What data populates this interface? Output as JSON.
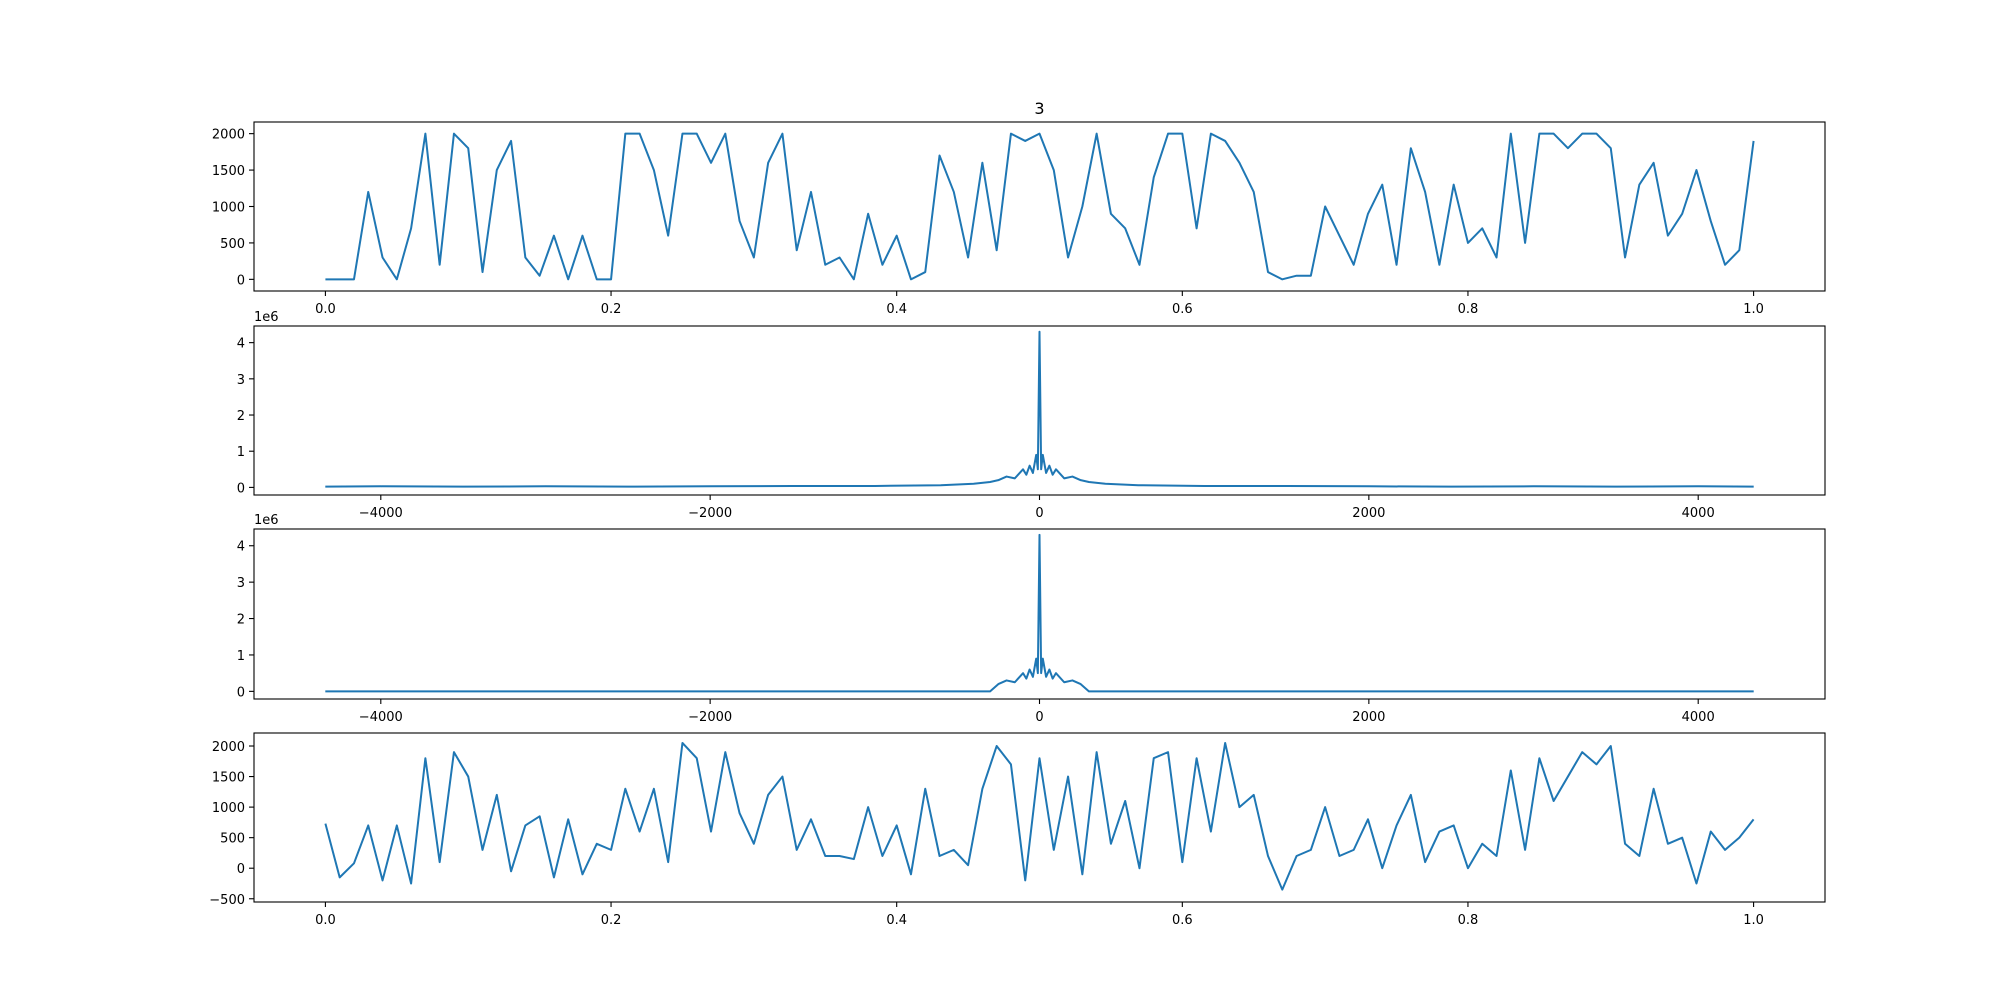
{
  "chart_data": [
    {
      "type": "line",
      "title": "3",
      "color": "#1f77b4",
      "x": [
        0,
        0.01,
        0.02,
        0.03,
        0.04,
        0.05,
        0.06,
        0.07,
        0.08,
        0.09,
        0.1,
        0.11,
        0.12,
        0.13,
        0.14,
        0.15,
        0.16,
        0.17,
        0.18,
        0.19,
        0.2,
        0.21,
        0.22,
        0.23,
        0.24,
        0.25,
        0.26,
        0.27,
        0.28,
        0.29,
        0.3,
        0.31,
        0.32,
        0.33,
        0.34,
        0.35,
        0.36,
        0.37,
        0.38,
        0.39,
        0.4,
        0.41,
        0.42,
        0.43,
        0.44,
        0.45,
        0.46,
        0.47,
        0.48,
        0.49,
        0.5,
        0.51,
        0.52,
        0.53,
        0.54,
        0.55,
        0.56,
        0.57,
        0.58,
        0.59,
        0.6,
        0.61,
        0.62,
        0.63,
        0.64,
        0.65,
        0.66,
        0.67,
        0.68,
        0.69,
        0.7,
        0.71,
        0.72,
        0.73,
        0.74,
        0.75,
        0.76,
        0.77,
        0.78,
        0.79,
        0.8,
        0.81,
        0.82,
        0.83,
        0.84,
        0.85,
        0.86,
        0.87,
        0.88,
        0.89,
        0.9,
        0.91,
        0.92,
        0.93,
        0.94,
        0.95,
        0.96,
        0.97,
        0.98,
        0.99,
        1
      ],
      "values": [
        0,
        0,
        0,
        1200,
        300,
        0,
        700,
        2000,
        200,
        2000,
        1800,
        100,
        1500,
        1900,
        300,
        50,
        600,
        0,
        600,
        0,
        0,
        2000,
        2000,
        1500,
        600,
        2000,
        2000,
        1600,
        2000,
        800,
        300,
        1600,
        2000,
        400,
        1200,
        200,
        300,
        0,
        900,
        200,
        600,
        0,
        100,
        1700,
        1200,
        300,
        1600,
        400,
        2000,
        1900,
        2000,
        1500,
        300,
        1000,
        2000,
        900,
        700,
        200,
        1400,
        2000,
        2000,
        700,
        2000,
        1900,
        1600,
        1200,
        100,
        0,
        50,
        50,
        1000,
        600,
        200,
        900,
        1300,
        200,
        1800,
        1200,
        200,
        1300,
        500,
        700,
        300,
        2000,
        500,
        2000,
        2000,
        1800,
        2000,
        2000,
        1800,
        300,
        1300,
        1600,
        600,
        900,
        1500,
        800,
        200,
        400,
        1900
      ],
      "xlim": [
        -0.05,
        1.05
      ],
      "ylim": [
        -160,
        2160
      ],
      "xticks": [
        {
          "value": 0,
          "label": "0.0"
        },
        0.2,
        0.4,
        0.6,
        0.8,
        {
          "value": 1,
          "label": "1.0"
        }
      ],
      "yticks": [
        0,
        500,
        1000,
        1500,
        2000
      ]
    },
    {
      "type": "line",
      "color": "#1f77b4",
      "y_offset_label": "1e6",
      "x": [
        -4337,
        -4000,
        -3500,
        -3000,
        -2500,
        -2000,
        -1500,
        -1000,
        -600,
        -400,
        -300,
        -250,
        -200,
        -150,
        -100,
        -80,
        -60,
        -40,
        -20,
        -10,
        0,
        10,
        20,
        40,
        60,
        80,
        100,
        150,
        200,
        250,
        300,
        400,
        600,
        1000,
        1500,
        2000,
        2500,
        3000,
        3500,
        4000,
        4337
      ],
      "values": [
        0.02,
        0.03,
        0.02,
        0.03,
        0.02,
        0.03,
        0.04,
        0.04,
        0.06,
        0.1,
        0.15,
        0.2,
        0.3,
        0.25,
        0.5,
        0.35,
        0.6,
        0.4,
        0.9,
        0.5,
        4.3,
        0.5,
        0.9,
        0.4,
        0.6,
        0.35,
        0.5,
        0.25,
        0.3,
        0.2,
        0.15,
        0.1,
        0.06,
        0.04,
        0.04,
        0.03,
        0.02,
        0.03,
        0.02,
        0.03,
        0.02
      ],
      "xlim": [
        -4770,
        4770
      ],
      "ylim": [
        -0.21,
        4.46
      ],
      "xticks": [
        {
          "value": -4000,
          "label": "−4000"
        },
        {
          "value": -2000,
          "label": "−2000"
        },
        0,
        2000,
        4000
      ],
      "yticks": [
        0,
        1,
        2,
        3,
        4
      ]
    },
    {
      "type": "line",
      "color": "#1f77b4",
      "y_offset_label": "1e6",
      "x": [
        -4337,
        -4000,
        -3500,
        -3000,
        -2500,
        -2000,
        -1500,
        -1000,
        -600,
        -400,
        -300,
        -250,
        -200,
        -150,
        -100,
        -80,
        -60,
        -40,
        -20,
        -10,
        0,
        10,
        20,
        40,
        60,
        80,
        100,
        150,
        200,
        250,
        300,
        400,
        600,
        1000,
        1500,
        2000,
        2500,
        3000,
        3500,
        4000,
        4337
      ],
      "values": [
        0,
        0,
        0,
        0,
        0,
        0,
        0,
        0,
        0,
        0,
        0,
        0.2,
        0.3,
        0.25,
        0.5,
        0.35,
        0.6,
        0.4,
        0.9,
        0.5,
        4.3,
        0.5,
        0.9,
        0.4,
        0.6,
        0.35,
        0.5,
        0.25,
        0.3,
        0.2,
        0,
        0,
        0,
        0,
        0,
        0,
        0,
        0,
        0,
        0,
        0
      ],
      "xlim": [
        -4770,
        4770
      ],
      "ylim": [
        -0.21,
        4.46
      ],
      "xticks": [
        {
          "value": -4000,
          "label": "−4000"
        },
        {
          "value": -2000,
          "label": "−2000"
        },
        0,
        2000,
        4000
      ],
      "yticks": [
        0,
        1,
        2,
        3,
        4
      ]
    },
    {
      "type": "line",
      "color": "#1f77b4",
      "x": [
        0,
        0.01,
        0.02,
        0.03,
        0.04,
        0.05,
        0.06,
        0.07,
        0.08,
        0.09,
        0.1,
        0.11,
        0.12,
        0.13,
        0.14,
        0.15,
        0.16,
        0.17,
        0.18,
        0.19,
        0.2,
        0.21,
        0.22,
        0.23,
        0.24,
        0.25,
        0.26,
        0.27,
        0.28,
        0.29,
        0.3,
        0.31,
        0.32,
        0.33,
        0.34,
        0.35,
        0.36,
        0.37,
        0.38,
        0.39,
        0.4,
        0.41,
        0.42,
        0.43,
        0.44,
        0.45,
        0.46,
        0.47,
        0.48,
        0.49,
        0.5,
        0.51,
        0.52,
        0.53,
        0.54,
        0.55,
        0.56,
        0.57,
        0.58,
        0.59,
        0.6,
        0.61,
        0.62,
        0.63,
        0.64,
        0.65,
        0.66,
        0.67,
        0.68,
        0.69,
        0.7,
        0.71,
        0.72,
        0.73,
        0.74,
        0.75,
        0.76,
        0.77,
        0.78,
        0.79,
        0.8,
        0.81,
        0.82,
        0.83,
        0.84,
        0.85,
        0.86,
        0.87,
        0.88,
        0.89,
        0.9,
        0.91,
        0.92,
        0.93,
        0.94,
        0.95,
        0.96,
        0.97,
        0.98,
        0.99,
        1
      ],
      "values": [
        730,
        -150,
        80,
        700,
        -200,
        700,
        -250,
        1800,
        100,
        1900,
        1500,
        300,
        1200,
        -50,
        700,
        850,
        -150,
        800,
        -100,
        400,
        300,
        1300,
        600,
        1300,
        100,
        2050,
        1800,
        600,
        1900,
        900,
        400,
        1200,
        1500,
        300,
        800,
        200,
        200,
        150,
        1000,
        200,
        700,
        -100,
        1300,
        200,
        300,
        50,
        1300,
        2000,
        1700,
        -200,
        1800,
        300,
        1500,
        -100,
        1900,
        400,
        1100,
        0,
        1800,
        1900,
        100,
        1800,
        600,
        2050,
        1000,
        1200,
        200,
        -350,
        200,
        300,
        1000,
        200,
        300,
        800,
        0,
        700,
        1200,
        100,
        600,
        700,
        0,
        400,
        200,
        1600,
        300,
        1800,
        1100,
        1500,
        1900,
        1700,
        2000,
        400,
        200,
        1300,
        400,
        500,
        -250,
        600,
        300,
        500,
        800
      ],
      "xlim": [
        -0.05,
        1.05
      ],
      "ylim": [
        -553,
        2213
      ],
      "xticks": [
        {
          "value": 0,
          "label": "0.0"
        },
        0.2,
        0.4,
        0.6,
        0.8,
        {
          "value": 1,
          "label": "1.0"
        }
      ],
      "yticks": [
        {
          "value": -500,
          "label": "−500"
        },
        0,
        500,
        1000,
        1500,
        2000
      ]
    }
  ]
}
